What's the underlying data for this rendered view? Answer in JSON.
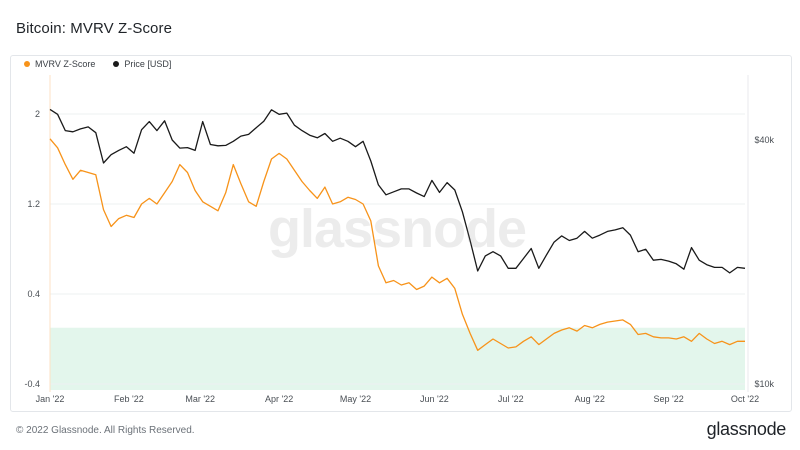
{
  "title": "Bitcoin: MVRV Z-Score",
  "footer": {
    "copyright": "© 2022 Glassnode. All Rights Reserved.",
    "brand": "glassnode"
  },
  "watermark": "glassnode",
  "colors": {
    "mvrv": "#f7931a",
    "price": "#1a1a1a",
    "band": "#e3f6ec",
    "grid": "#eef0f2"
  },
  "chart_data": {
    "type": "line",
    "title": "Bitcoin: MVRV Z-Score",
    "legend": [
      {
        "name": "MVRV Z-Score",
        "color": "#f7931a"
      },
      {
        "name": "Price [USD]",
        "color": "#1a1a1a"
      }
    ],
    "legend_position": "top-left",
    "grid": true,
    "x_ticks": [
      {
        "date": "2022-01-01",
        "label": "Jan '22"
      },
      {
        "date": "2022-02-01",
        "label": "Feb '22"
      },
      {
        "date": "2022-03-01",
        "label": "Mar '22"
      },
      {
        "date": "2022-04-01",
        "label": "Apr '22"
      },
      {
        "date": "2022-05-01",
        "label": "May '22"
      },
      {
        "date": "2022-06-01",
        "label": "Jun '22"
      },
      {
        "date": "2022-07-01",
        "label": "Jul '22"
      },
      {
        "date": "2022-08-01",
        "label": "Aug '22"
      },
      {
        "date": "2022-09-01",
        "label": "Sep '22"
      },
      {
        "date": "2022-10-01",
        "label": "Oct '22"
      }
    ],
    "x_range": [
      "2022-01-01",
      "2022-10-01"
    ],
    "y_left": {
      "ticks": [
        2,
        1.2,
        0.4,
        -0.4
      ],
      "labels": [
        "2",
        "1.2",
        "0.4",
        "-0.4"
      ],
      "range": [
        -0.4,
        2.2
      ]
    },
    "y_right": {
      "scale": "log",
      "ticks": [
        40000,
        10000
      ],
      "labels": [
        "$40k",
        "$10k"
      ],
      "range": [
        10000,
        60000
      ]
    },
    "band": {
      "from": -0.4,
      "to": 0.1,
      "color": "#e3f6ec"
    },
    "series": [
      {
        "name": "MVRV Z-Score",
        "axis": "left",
        "color": "#f7931a",
        "points": [
          [
            "2022-01-01",
            1.78
          ],
          [
            "2022-01-04",
            1.7
          ],
          [
            "2022-01-07",
            1.55
          ],
          [
            "2022-01-10",
            1.42
          ],
          [
            "2022-01-13",
            1.5
          ],
          [
            "2022-01-16",
            1.48
          ],
          [
            "2022-01-19",
            1.46
          ],
          [
            "2022-01-22",
            1.15
          ],
          [
            "2022-01-25",
            1.0
          ],
          [
            "2022-01-28",
            1.07
          ],
          [
            "2022-01-31",
            1.1
          ],
          [
            "2022-02-03",
            1.08
          ],
          [
            "2022-02-06",
            1.2
          ],
          [
            "2022-02-09",
            1.25
          ],
          [
            "2022-02-12",
            1.2
          ],
          [
            "2022-02-15",
            1.3
          ],
          [
            "2022-02-18",
            1.4
          ],
          [
            "2022-02-21",
            1.55
          ],
          [
            "2022-02-24",
            1.48
          ],
          [
            "2022-02-27",
            1.32
          ],
          [
            "2022-03-02",
            1.22
          ],
          [
            "2022-03-05",
            1.18
          ],
          [
            "2022-03-08",
            1.14
          ],
          [
            "2022-03-11",
            1.3
          ],
          [
            "2022-03-14",
            1.55
          ],
          [
            "2022-03-17",
            1.38
          ],
          [
            "2022-03-20",
            1.22
          ],
          [
            "2022-03-23",
            1.18
          ],
          [
            "2022-03-26",
            1.4
          ],
          [
            "2022-03-29",
            1.6
          ],
          [
            "2022-04-01",
            1.65
          ],
          [
            "2022-04-04",
            1.6
          ],
          [
            "2022-04-07",
            1.5
          ],
          [
            "2022-04-10",
            1.4
          ],
          [
            "2022-04-13",
            1.32
          ],
          [
            "2022-04-16",
            1.25
          ],
          [
            "2022-04-19",
            1.35
          ],
          [
            "2022-04-22",
            1.2
          ],
          [
            "2022-04-25",
            1.22
          ],
          [
            "2022-04-28",
            1.26
          ],
          [
            "2022-05-01",
            1.24
          ],
          [
            "2022-05-04",
            1.2
          ],
          [
            "2022-05-07",
            1.05
          ],
          [
            "2022-05-10",
            0.65
          ],
          [
            "2022-05-13",
            0.5
          ],
          [
            "2022-05-16",
            0.52
          ],
          [
            "2022-05-19",
            0.48
          ],
          [
            "2022-05-22",
            0.5
          ],
          [
            "2022-05-25",
            0.44
          ],
          [
            "2022-05-28",
            0.47
          ],
          [
            "2022-05-31",
            0.55
          ],
          [
            "2022-06-03",
            0.5
          ],
          [
            "2022-06-06",
            0.54
          ],
          [
            "2022-06-09",
            0.45
          ],
          [
            "2022-06-12",
            0.22
          ],
          [
            "2022-06-15",
            0.05
          ],
          [
            "2022-06-18",
            -0.1
          ],
          [
            "2022-06-21",
            -0.05
          ],
          [
            "2022-06-24",
            0.0
          ],
          [
            "2022-06-27",
            -0.04
          ],
          [
            "2022-06-30",
            -0.08
          ],
          [
            "2022-07-03",
            -0.07
          ],
          [
            "2022-07-06",
            -0.02
          ],
          [
            "2022-07-09",
            0.02
          ],
          [
            "2022-07-12",
            -0.05
          ],
          [
            "2022-07-15",
            0.0
          ],
          [
            "2022-07-18",
            0.05
          ],
          [
            "2022-07-21",
            0.08
          ],
          [
            "2022-07-24",
            0.1
          ],
          [
            "2022-07-27",
            0.07
          ],
          [
            "2022-07-30",
            0.12
          ],
          [
            "2022-08-02",
            0.1
          ],
          [
            "2022-08-05",
            0.13
          ],
          [
            "2022-08-08",
            0.15
          ],
          [
            "2022-08-11",
            0.16
          ],
          [
            "2022-08-14",
            0.17
          ],
          [
            "2022-08-17",
            0.13
          ],
          [
            "2022-08-20",
            0.04
          ],
          [
            "2022-08-23",
            0.05
          ],
          [
            "2022-08-26",
            0.02
          ],
          [
            "2022-08-29",
            0.01
          ],
          [
            "2022-09-01",
            0.01
          ],
          [
            "2022-09-04",
            0.0
          ],
          [
            "2022-09-07",
            0.02
          ],
          [
            "2022-09-10",
            -0.02
          ],
          [
            "2022-09-13",
            0.05
          ],
          [
            "2022-09-16",
            0.0
          ],
          [
            "2022-09-19",
            -0.04
          ],
          [
            "2022-09-22",
            -0.02
          ],
          [
            "2022-09-25",
            -0.05
          ],
          [
            "2022-09-28",
            -0.02
          ],
          [
            "2022-10-01",
            -0.02
          ]
        ]
      },
      {
        "name": "Price [USD]",
        "axis": "right",
        "color": "#1a1a1a",
        "points": [
          [
            "2022-01-01",
            47600
          ],
          [
            "2022-01-04",
            46300
          ],
          [
            "2022-01-07",
            42200
          ],
          [
            "2022-01-10",
            41900
          ],
          [
            "2022-01-13",
            42600
          ],
          [
            "2022-01-16",
            43100
          ],
          [
            "2022-01-19",
            41700
          ],
          [
            "2022-01-22",
            35100
          ],
          [
            "2022-01-25",
            36800
          ],
          [
            "2022-01-28",
            37700
          ],
          [
            "2022-01-31",
            38500
          ],
          [
            "2022-02-03",
            37100
          ],
          [
            "2022-02-06",
            42400
          ],
          [
            "2022-02-09",
            44400
          ],
          [
            "2022-02-12",
            42200
          ],
          [
            "2022-02-15",
            44600
          ],
          [
            "2022-02-18",
            40000
          ],
          [
            "2022-02-21",
            38200
          ],
          [
            "2022-02-24",
            38300
          ],
          [
            "2022-02-27",
            37700
          ],
          [
            "2022-03-02",
            44400
          ],
          [
            "2022-03-05",
            39000
          ],
          [
            "2022-03-08",
            38700
          ],
          [
            "2022-03-11",
            38800
          ],
          [
            "2022-03-14",
            39700
          ],
          [
            "2022-03-17",
            40900
          ],
          [
            "2022-03-20",
            41300
          ],
          [
            "2022-03-23",
            42900
          ],
          [
            "2022-03-26",
            44500
          ],
          [
            "2022-03-29",
            47500
          ],
          [
            "2022-04-01",
            46300
          ],
          [
            "2022-04-04",
            46600
          ],
          [
            "2022-04-07",
            43500
          ],
          [
            "2022-04-10",
            42200
          ],
          [
            "2022-04-13",
            41100
          ],
          [
            "2022-04-16",
            40500
          ],
          [
            "2022-04-19",
            41500
          ],
          [
            "2022-04-22",
            39700
          ],
          [
            "2022-04-25",
            40400
          ],
          [
            "2022-04-28",
            39700
          ],
          [
            "2022-05-01",
            38500
          ],
          [
            "2022-05-04",
            39700
          ],
          [
            "2022-05-07",
            35500
          ],
          [
            "2022-05-10",
            31000
          ],
          [
            "2022-05-13",
            29300
          ],
          [
            "2022-05-16",
            29800
          ],
          [
            "2022-05-19",
            30300
          ],
          [
            "2022-05-22",
            30300
          ],
          [
            "2022-05-25",
            29600
          ],
          [
            "2022-05-28",
            29000
          ],
          [
            "2022-05-31",
            31800
          ],
          [
            "2022-06-03",
            29700
          ],
          [
            "2022-06-06",
            31400
          ],
          [
            "2022-06-09",
            30100
          ],
          [
            "2022-06-12",
            26600
          ],
          [
            "2022-06-15",
            22600
          ],
          [
            "2022-06-18",
            19000
          ],
          [
            "2022-06-21",
            20700
          ],
          [
            "2022-06-24",
            21200
          ],
          [
            "2022-06-27",
            20700
          ],
          [
            "2022-06-30",
            19300
          ],
          [
            "2022-07-03",
            19300
          ],
          [
            "2022-07-06",
            20400
          ],
          [
            "2022-07-09",
            21600
          ],
          [
            "2022-07-12",
            19300
          ],
          [
            "2022-07-15",
            20800
          ],
          [
            "2022-07-18",
            22400
          ],
          [
            "2022-07-21",
            23200
          ],
          [
            "2022-07-24",
            22600
          ],
          [
            "2022-07-27",
            22900
          ],
          [
            "2022-07-30",
            23800
          ],
          [
            "2022-08-02",
            22900
          ],
          [
            "2022-08-05",
            23300
          ],
          [
            "2022-08-08",
            23800
          ],
          [
            "2022-08-11",
            24000
          ],
          [
            "2022-08-14",
            24300
          ],
          [
            "2022-08-17",
            23300
          ],
          [
            "2022-08-20",
            21200
          ],
          [
            "2022-08-23",
            21500
          ],
          [
            "2022-08-26",
            20200
          ],
          [
            "2022-08-29",
            20300
          ],
          [
            "2022-09-01",
            20100
          ],
          [
            "2022-09-04",
            19800
          ],
          [
            "2022-09-07",
            19200
          ],
          [
            "2022-09-10",
            21700
          ],
          [
            "2022-09-13",
            20200
          ],
          [
            "2022-09-16",
            19700
          ],
          [
            "2022-09-19",
            19400
          ],
          [
            "2022-09-22",
            19400
          ],
          [
            "2022-09-25",
            18800
          ],
          [
            "2022-09-28",
            19400
          ],
          [
            "2022-10-01",
            19300
          ]
        ]
      }
    ]
  }
}
